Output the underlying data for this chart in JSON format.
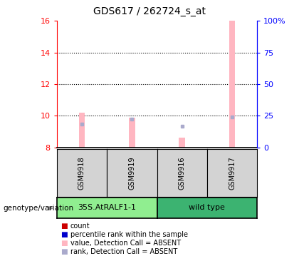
{
  "title": "GDS617 / 262724_s_at",
  "samples": [
    "GSM9918",
    "GSM9919",
    "GSM9916",
    "GSM9917"
  ],
  "ylim_left": [
    8,
    16
  ],
  "ylim_right": [
    0,
    100
  ],
  "yticks_left": [
    8,
    10,
    12,
    14,
    16
  ],
  "yticks_right": [
    0,
    25,
    50,
    75,
    100
  ],
  "pink_values": [
    10.2,
    9.9,
    8.6,
    16.0
  ],
  "blue_values": [
    9.5,
    9.8,
    9.35,
    9.95
  ],
  "pink_color": "#ffb6c1",
  "blue_color": "#aaaacc",
  "bar_width": 0.12,
  "sample_box_color": "#d3d3d3",
  "left_axis_color": "red",
  "right_axis_color": "blue",
  "group1_color": "#90ee90",
  "group2_color": "#3cb371",
  "group1_label": "35S.AtRALF1-1",
  "group2_label": "wild type",
  "legend_items": [
    {
      "label": "count",
      "color": "#cc0000",
      "marker": "s"
    },
    {
      "label": "percentile rank within the sample",
      "color": "#0000cc",
      "marker": "s"
    },
    {
      "label": "value, Detection Call = ABSENT",
      "color": "#ffb6c1",
      "marker": "s"
    },
    {
      "label": "rank, Detection Call = ABSENT",
      "color": "#aaaacc",
      "marker": "s"
    }
  ]
}
